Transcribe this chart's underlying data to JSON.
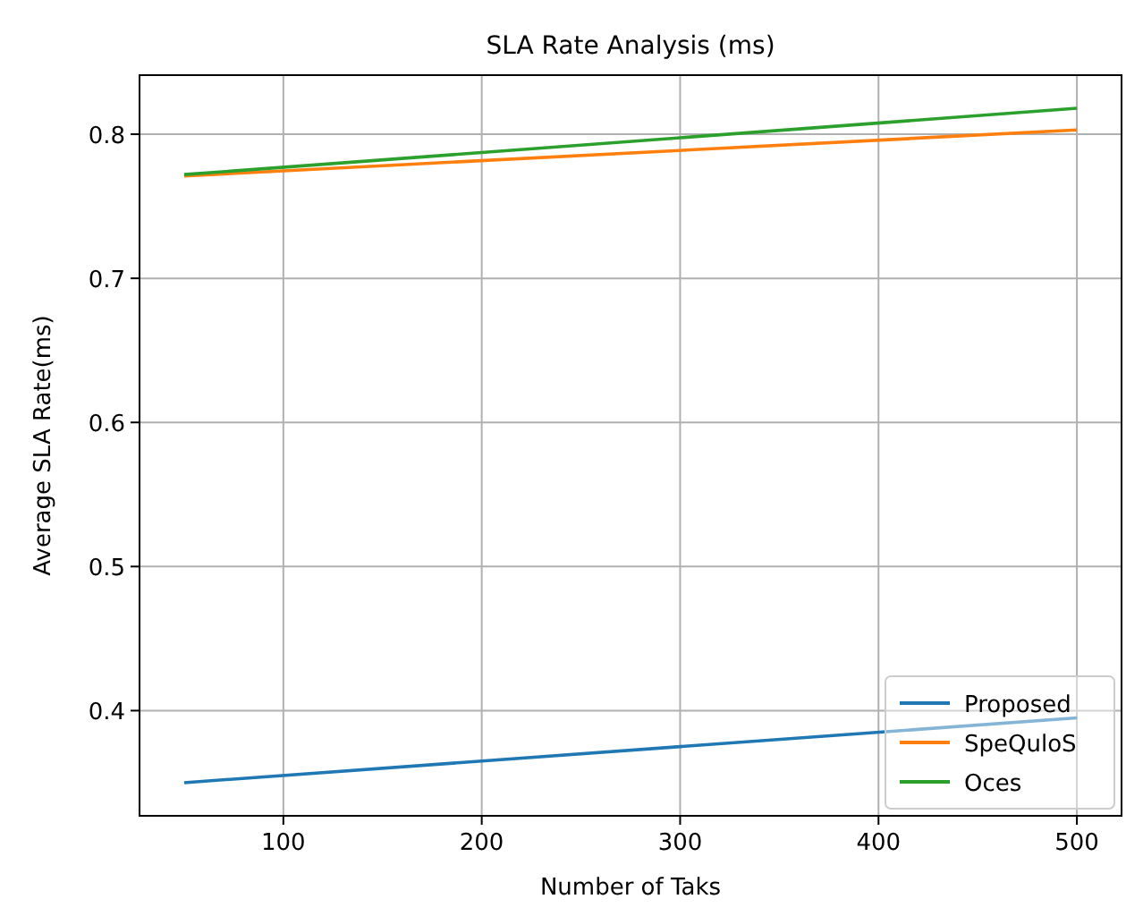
{
  "chart_data": {
    "type": "line",
    "title": "SLA Rate Analysis (ms)",
    "xlabel": "Number of Taks",
    "ylabel": "Average SLA Rate(ms)",
    "x": [
      50,
      500
    ],
    "series": [
      {
        "name": "Proposed",
        "color": "#1f77b4",
        "values": [
          0.35,
          0.395
        ]
      },
      {
        "name": "SpeQuloS",
        "color": "#ff7f0e",
        "values": [
          0.771,
          0.803
        ]
      },
      {
        "name": "Oces",
        "color": "#2ca02c",
        "values": [
          0.772,
          0.818
        ]
      }
    ],
    "xlim": [
      27.5,
      522.5
    ],
    "xticks": [
      100,
      200,
      300,
      400,
      500
    ],
    "ylim": [
      0.327,
      0.841
    ],
    "yticks": [
      0.4,
      0.5,
      0.6,
      0.7,
      0.8
    ],
    "grid": true,
    "legend": "bottom right",
    "marker": "none",
    "line_style": "solid"
  }
}
